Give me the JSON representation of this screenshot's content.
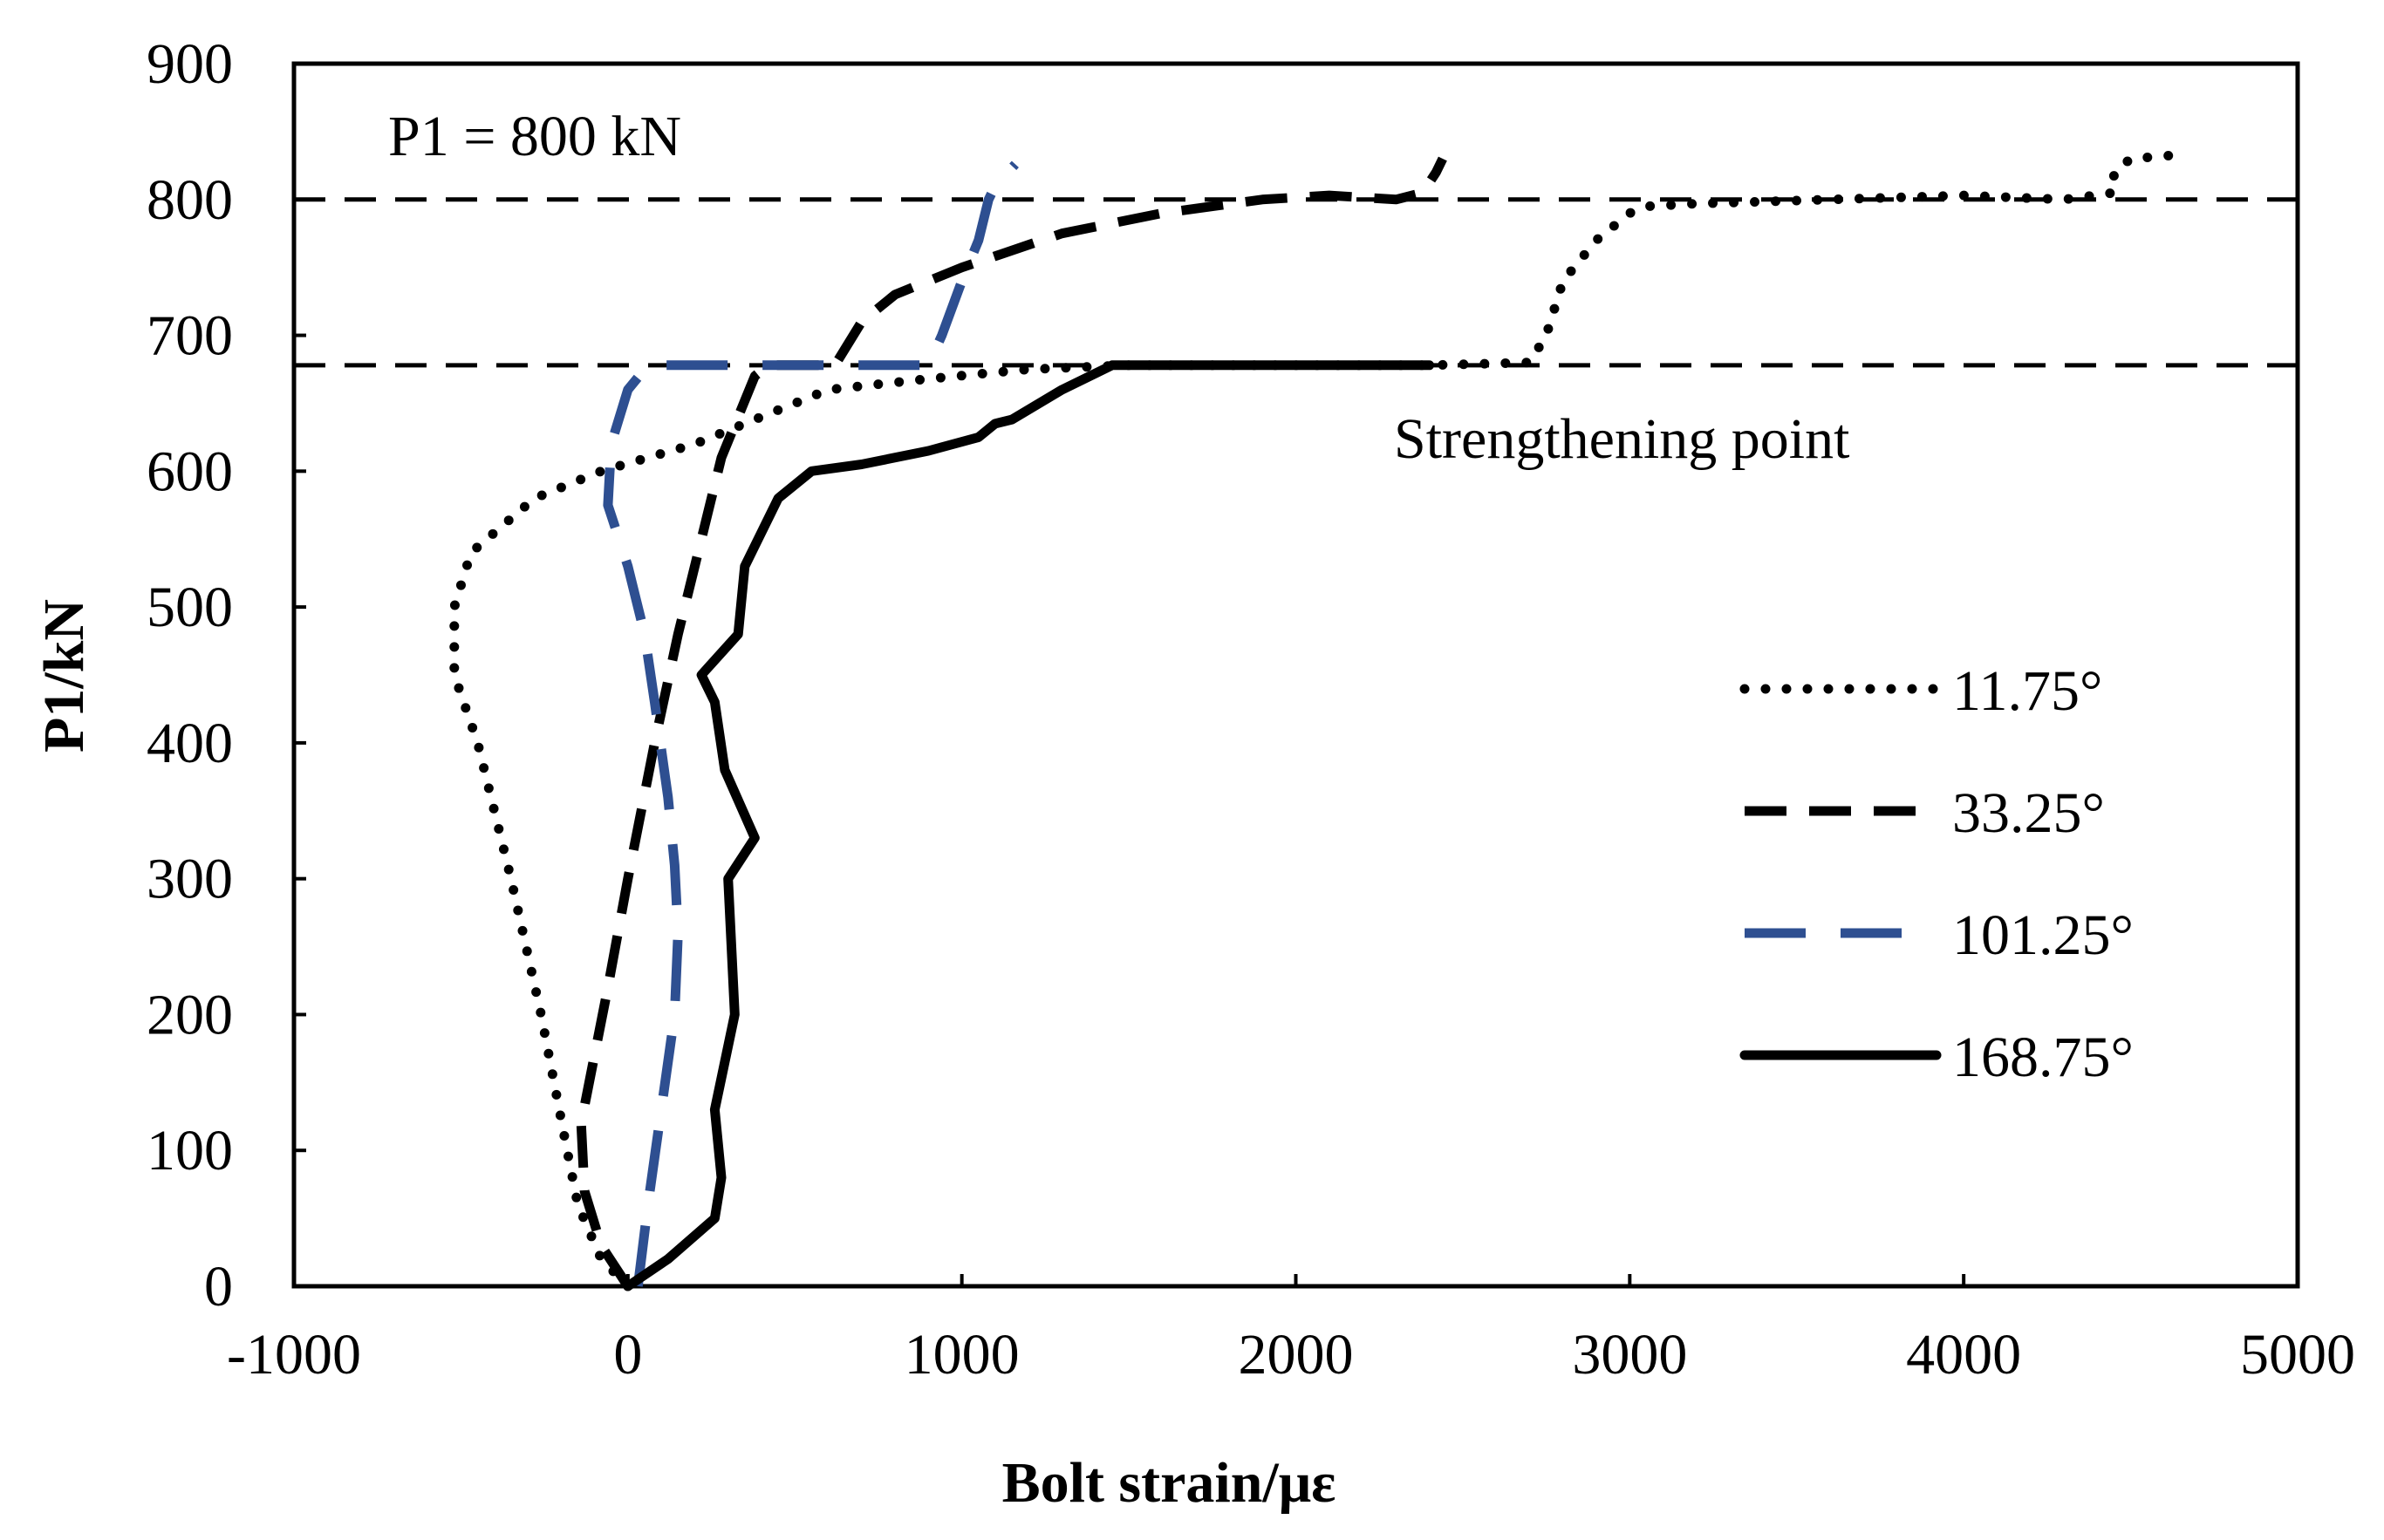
{
  "chart_data": {
    "type": "line",
    "title": "",
    "xlabel": "Bolt strain/με",
    "ylabel": "P1/kN",
    "xlim": [
      -1000,
      5000
    ],
    "ylim": [
      0,
      900
    ],
    "x_ticks": [
      -1000,
      0,
      1000,
      2000,
      3000,
      4000,
      5000
    ],
    "y_ticks": [
      0,
      100,
      200,
      300,
      400,
      500,
      600,
      700,
      800,
      900
    ],
    "x_tick_labels": [
      "-1000",
      "0",
      "1000",
      "2000",
      "3000",
      "4000",
      "5000"
    ],
    "y_tick_labels": [
      "0",
      "100",
      "200",
      "300",
      "400",
      "500",
      "600",
      "700",
      "800",
      "900"
    ],
    "grid": false,
    "legend_position": "right",
    "reference_lines": [
      {
        "axis": "y",
        "value": 800,
        "style": "dashed",
        "color": "#000000"
      },
      {
        "axis": "y",
        "value": 678,
        "style": "dashed",
        "color": "#000000"
      }
    ],
    "annotations": [
      {
        "text": "P1 = 800 kN",
        "x": -650,
        "y": 845
      },
      {
        "text": "Strengthening point",
        "x": 2300,
        "y": 625
      }
    ],
    "series": [
      {
        "name": "11.75°",
        "style": "dotted",
        "color": "#000000",
        "points": [
          [
            0,
            0
          ],
          [
            -80,
            20
          ],
          [
            -150,
            60
          ],
          [
            -190,
            110
          ],
          [
            -260,
            200
          ],
          [
            -350,
            300
          ],
          [
            -450,
            400
          ],
          [
            -520,
            450
          ],
          [
            -520,
            500
          ],
          [
            -470,
            540
          ],
          [
            -280,
            580
          ],
          [
            -80,
            600
          ],
          [
            200,
            620
          ],
          [
            400,
            640
          ],
          [
            600,
            660
          ],
          [
            900,
            668
          ],
          [
            1200,
            675
          ],
          [
            1500,
            678
          ],
          [
            2400,
            678
          ],
          [
            2700,
            680
          ],
          [
            2750,
            700
          ],
          [
            2800,
            740
          ],
          [
            2900,
            770
          ],
          [
            3000,
            790
          ],
          [
            3050,
            795
          ],
          [
            3200,
            797
          ],
          [
            3600,
            800
          ],
          [
            4000,
            803
          ],
          [
            4300,
            800
          ],
          [
            4450,
            805
          ],
          [
            4450,
            820
          ],
          [
            4500,
            830
          ],
          [
            4650,
            833
          ]
        ]
      },
      {
        "name": "33.25°",
        "style": "dashed",
        "color": "#000000",
        "points": [
          [
            0,
            0
          ],
          [
            -80,
            30
          ],
          [
            -130,
            70
          ],
          [
            -140,
            120
          ],
          [
            -60,
            220
          ],
          [
            0,
            300
          ],
          [
            80,
            400
          ],
          [
            150,
            480
          ],
          [
            220,
            550
          ],
          [
            280,
            610
          ],
          [
            330,
            640
          ],
          [
            380,
            670
          ],
          [
            420,
            678
          ],
          [
            620,
            678
          ],
          [
            700,
            710
          ],
          [
            800,
            730
          ],
          [
            1000,
            750
          ],
          [
            1300,
            775
          ],
          [
            1600,
            790
          ],
          [
            1900,
            800
          ],
          [
            2100,
            803
          ],
          [
            2300,
            800
          ],
          [
            2380,
            805
          ],
          [
            2420,
            820
          ],
          [
            2440,
            830
          ]
        ]
      },
      {
        "name": "101.25°",
        "style": "long-dashed",
        "color": "#2e4f91",
        "points": [
          [
            30,
            0
          ],
          [
            60,
            60
          ],
          [
            100,
            130
          ],
          [
            140,
            200
          ],
          [
            150,
            260
          ],
          [
            140,
            310
          ],
          [
            120,
            360
          ],
          [
            80,
            430
          ],
          [
            50,
            480
          ],
          [
            0,
            530
          ],
          [
            -60,
            575
          ],
          [
            -50,
            620
          ],
          [
            0,
            660
          ],
          [
            60,
            678
          ],
          [
            900,
            678
          ],
          [
            940,
            700
          ],
          [
            1000,
            740
          ],
          [
            1050,
            770
          ],
          [
            1080,
            800
          ],
          [
            1100,
            810
          ],
          [
            1160,
            826
          ]
        ]
      },
      {
        "name": "168.75°",
        "style": "solid",
        "color": "#000000",
        "points": [
          [
            0,
            0
          ],
          [
            120,
            20
          ],
          [
            260,
            50
          ],
          [
            280,
            80
          ],
          [
            260,
            130
          ],
          [
            320,
            200
          ],
          [
            300,
            300
          ],
          [
            380,
            330
          ],
          [
            290,
            380
          ],
          [
            260,
            430
          ],
          [
            220,
            450
          ],
          [
            330,
            480
          ],
          [
            350,
            530
          ],
          [
            450,
            580
          ],
          [
            550,
            600
          ],
          [
            700,
            605
          ],
          [
            900,
            615
          ],
          [
            1050,
            625
          ],
          [
            1100,
            635
          ],
          [
            1150,
            638
          ],
          [
            1300,
            660
          ],
          [
            1450,
            678
          ],
          [
            2400,
            678
          ]
        ]
      }
    ]
  }
}
